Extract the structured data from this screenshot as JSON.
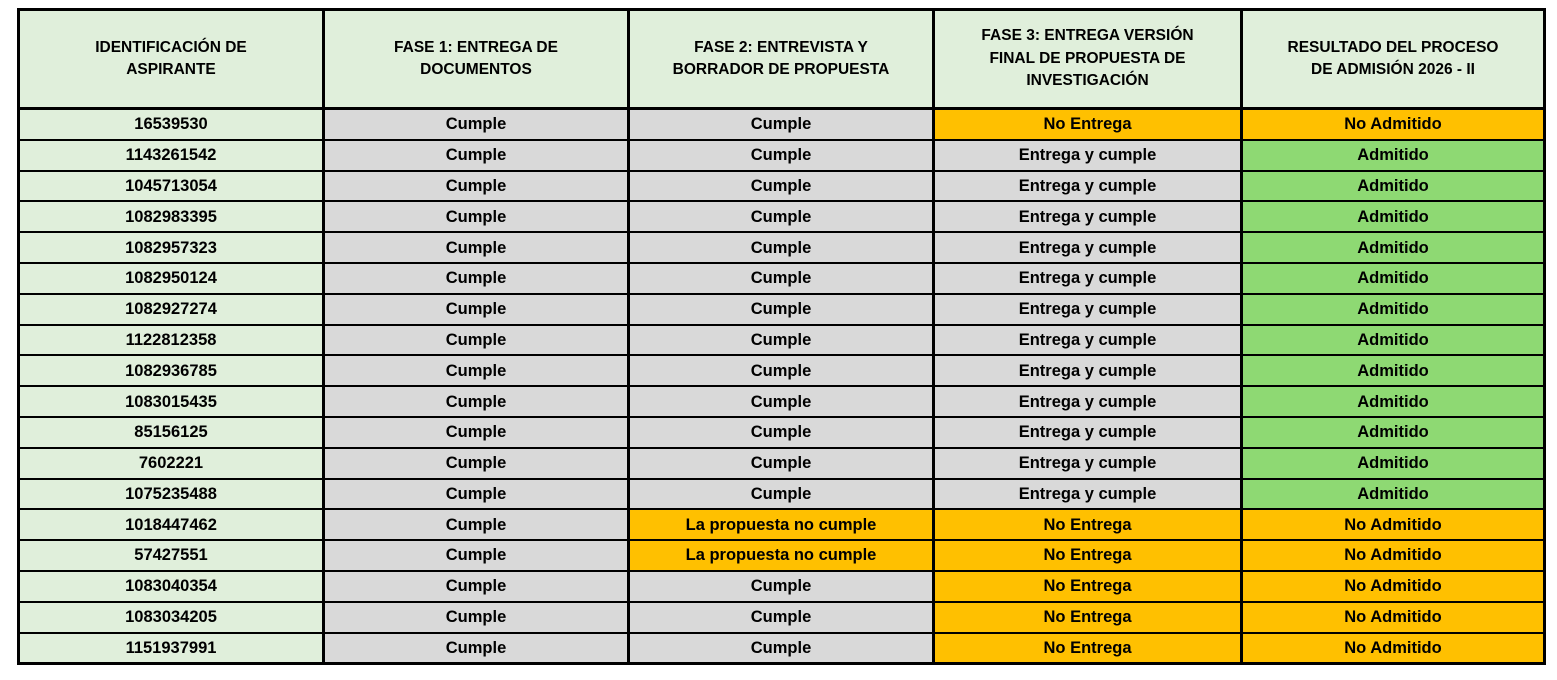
{
  "colors": {
    "header_bg": "#E0EFDB",
    "id_bg": "#E0EFDB",
    "neutral_bg": "#D9D9D9",
    "warning_bg": "#FFC000",
    "success_bg": "#8ED973",
    "border": "#000000",
    "text": "#000000"
  },
  "table": {
    "headers": [
      "IDENTIFICACIÓN DE ASPIRANTE",
      "FASE 1: ENTREGA DE DOCUMENTOS",
      "FASE 2: ENTREVISTA Y BORRADOR DE PROPUESTA",
      "FASE 3: ENTREGA VERSIÓN FINAL DE PROPUESTA DE INVESTIGACIÓN",
      "RESULTADO DEL PROCESO DE ADMISIÓN 2026 - II"
    ],
    "rows": [
      {
        "cells": [
          {
            "text": "16539530",
            "status": "id"
          },
          {
            "text": "Cumple",
            "status": "neutral"
          },
          {
            "text": "Cumple",
            "status": "neutral"
          },
          {
            "text": "No Entrega",
            "status": "warning"
          },
          {
            "text": "No Admitido",
            "status": "warning"
          }
        ]
      },
      {
        "cells": [
          {
            "text": "1143261542",
            "status": "id"
          },
          {
            "text": "Cumple",
            "status": "neutral"
          },
          {
            "text": "Cumple",
            "status": "neutral"
          },
          {
            "text": "Entrega y cumple",
            "status": "neutral"
          },
          {
            "text": "Admitido",
            "status": "success"
          }
        ]
      },
      {
        "cells": [
          {
            "text": "1045713054",
            "status": "id"
          },
          {
            "text": "Cumple",
            "status": "neutral"
          },
          {
            "text": "Cumple",
            "status": "neutral"
          },
          {
            "text": "Entrega y cumple",
            "status": "neutral"
          },
          {
            "text": "Admitido",
            "status": "success"
          }
        ]
      },
      {
        "cells": [
          {
            "text": "1082983395",
            "status": "id"
          },
          {
            "text": "Cumple",
            "status": "neutral"
          },
          {
            "text": "Cumple",
            "status": "neutral"
          },
          {
            "text": "Entrega y cumple",
            "status": "neutral"
          },
          {
            "text": "Admitido",
            "status": "success"
          }
        ]
      },
      {
        "cells": [
          {
            "text": "1082957323",
            "status": "id"
          },
          {
            "text": "Cumple",
            "status": "neutral"
          },
          {
            "text": "Cumple",
            "status": "neutral"
          },
          {
            "text": "Entrega y cumple",
            "status": "neutral"
          },
          {
            "text": "Admitido",
            "status": "success"
          }
        ]
      },
      {
        "cells": [
          {
            "text": "1082950124",
            "status": "id"
          },
          {
            "text": "Cumple",
            "status": "neutral"
          },
          {
            "text": "Cumple",
            "status": "neutral"
          },
          {
            "text": "Entrega y cumple",
            "status": "neutral"
          },
          {
            "text": "Admitido",
            "status": "success"
          }
        ]
      },
      {
        "cells": [
          {
            "text": "1082927274",
            "status": "id"
          },
          {
            "text": "Cumple",
            "status": "neutral"
          },
          {
            "text": "Cumple",
            "status": "neutral"
          },
          {
            "text": "Entrega y cumple",
            "status": "neutral"
          },
          {
            "text": "Admitido",
            "status": "success"
          }
        ]
      },
      {
        "cells": [
          {
            "text": "1122812358",
            "status": "id"
          },
          {
            "text": "Cumple",
            "status": "neutral"
          },
          {
            "text": "Cumple",
            "status": "neutral"
          },
          {
            "text": "Entrega y cumple",
            "status": "neutral"
          },
          {
            "text": "Admitido",
            "status": "success"
          }
        ]
      },
      {
        "cells": [
          {
            "text": "1082936785",
            "status": "id"
          },
          {
            "text": "Cumple",
            "status": "neutral"
          },
          {
            "text": "Cumple",
            "status": "neutral"
          },
          {
            "text": "Entrega y cumple",
            "status": "neutral"
          },
          {
            "text": "Admitido",
            "status": "success"
          }
        ]
      },
      {
        "cells": [
          {
            "text": "1083015435",
            "status": "id"
          },
          {
            "text": "Cumple",
            "status": "neutral"
          },
          {
            "text": "Cumple",
            "status": "neutral"
          },
          {
            "text": "Entrega y cumple",
            "status": "neutral"
          },
          {
            "text": "Admitido",
            "status": "success"
          }
        ]
      },
      {
        "cells": [
          {
            "text": "85156125",
            "status": "id"
          },
          {
            "text": "Cumple",
            "status": "neutral"
          },
          {
            "text": "Cumple",
            "status": "neutral"
          },
          {
            "text": "Entrega y cumple",
            "status": "neutral"
          },
          {
            "text": "Admitido",
            "status": "success"
          }
        ]
      },
      {
        "cells": [
          {
            "text": "7602221",
            "status": "id"
          },
          {
            "text": "Cumple",
            "status": "neutral"
          },
          {
            "text": "Cumple",
            "status": "neutral"
          },
          {
            "text": "Entrega y cumple",
            "status": "neutral"
          },
          {
            "text": "Admitido",
            "status": "success"
          }
        ]
      },
      {
        "cells": [
          {
            "text": "1075235488",
            "status": "id"
          },
          {
            "text": "Cumple",
            "status": "neutral"
          },
          {
            "text": "Cumple",
            "status": "neutral"
          },
          {
            "text": "Entrega y cumple",
            "status": "neutral"
          },
          {
            "text": "Admitido",
            "status": "success"
          }
        ]
      },
      {
        "cells": [
          {
            "text": "1018447462",
            "status": "id"
          },
          {
            "text": "Cumple",
            "status": "neutral"
          },
          {
            "text": "La propuesta no cumple",
            "status": "warning"
          },
          {
            "text": "No Entrega",
            "status": "warning"
          },
          {
            "text": "No Admitido",
            "status": "warning"
          }
        ]
      },
      {
        "cells": [
          {
            "text": "57427551",
            "status": "id"
          },
          {
            "text": "Cumple",
            "status": "neutral"
          },
          {
            "text": "La propuesta no cumple",
            "status": "warning"
          },
          {
            "text": "No Entrega",
            "status": "warning"
          },
          {
            "text": "No Admitido",
            "status": "warning"
          }
        ]
      },
      {
        "cells": [
          {
            "text": "1083040354",
            "status": "id"
          },
          {
            "text": "Cumple",
            "status": "neutral"
          },
          {
            "text": "Cumple",
            "status": "neutral"
          },
          {
            "text": "No Entrega",
            "status": "warning"
          },
          {
            "text": "No Admitido",
            "status": "warning"
          }
        ]
      },
      {
        "cells": [
          {
            "text": "1083034205",
            "status": "id"
          },
          {
            "text": "Cumple",
            "status": "neutral"
          },
          {
            "text": "Cumple",
            "status": "neutral"
          },
          {
            "text": "No Entrega",
            "status": "warning"
          },
          {
            "text": "No Admitido",
            "status": "warning"
          }
        ]
      },
      {
        "cells": [
          {
            "text": "1151937991",
            "status": "id"
          },
          {
            "text": "Cumple",
            "status": "neutral"
          },
          {
            "text": "Cumple",
            "status": "neutral"
          },
          {
            "text": "No Entrega",
            "status": "warning"
          },
          {
            "text": "No Admitido",
            "status": "warning"
          }
        ]
      }
    ]
  }
}
